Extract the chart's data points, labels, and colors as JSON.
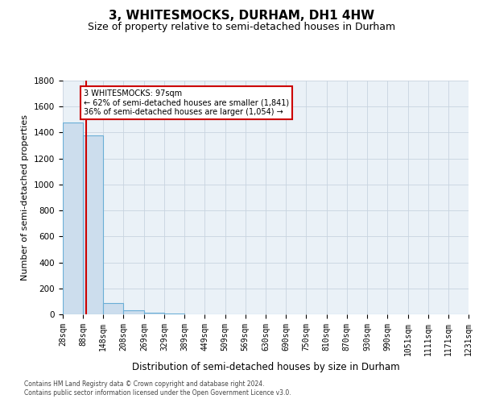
{
  "title": "3, WHITESMOCKS, DURHAM, DH1 4HW",
  "subtitle": "Size of property relative to semi-detached houses in Durham",
  "xlabel": "Distribution of semi-detached houses by size in Durham",
  "ylabel": "Number of semi-detached properties",
  "footnote1": "Contains HM Land Registry data © Crown copyright and database right 2024.",
  "footnote2": "Contains public sector information licensed under the Open Government Licence v3.0.",
  "annotation_line1": "3 WHITESMOCKS: 97sqm",
  "annotation_line2": "← 62% of semi-detached houses are smaller (1,841)",
  "annotation_line3": "36% of semi-detached houses are larger (1,054) →",
  "property_size": 97,
  "bin_edges": [
    28,
    88,
    148,
    208,
    269,
    329,
    389,
    449,
    509,
    569,
    630,
    690,
    750,
    810,
    870,
    930,
    990,
    1051,
    1111,
    1171,
    1231
  ],
  "bar_heights": [
    1475,
    1375,
    90,
    30,
    10,
    5,
    3,
    2,
    1,
    1,
    1,
    1,
    0,
    0,
    0,
    0,
    0,
    0,
    0,
    0
  ],
  "bar_color": "#ccdded",
  "bar_edge_color": "#6aaed6",
  "bar_edge_width": 0.8,
  "redline_color": "#cc0000",
  "annotation_box_color": "#cc0000",
  "grid_color": "#c8d4e0",
  "bg_color": "#eaf1f7",
  "ylim": [
    0,
    1800
  ],
  "title_fontsize": 11,
  "subtitle_fontsize": 9,
  "tick_fontsize": 7,
  "ylabel_fontsize": 8,
  "xlabel_fontsize": 8.5,
  "footnote_fontsize": 5.5
}
